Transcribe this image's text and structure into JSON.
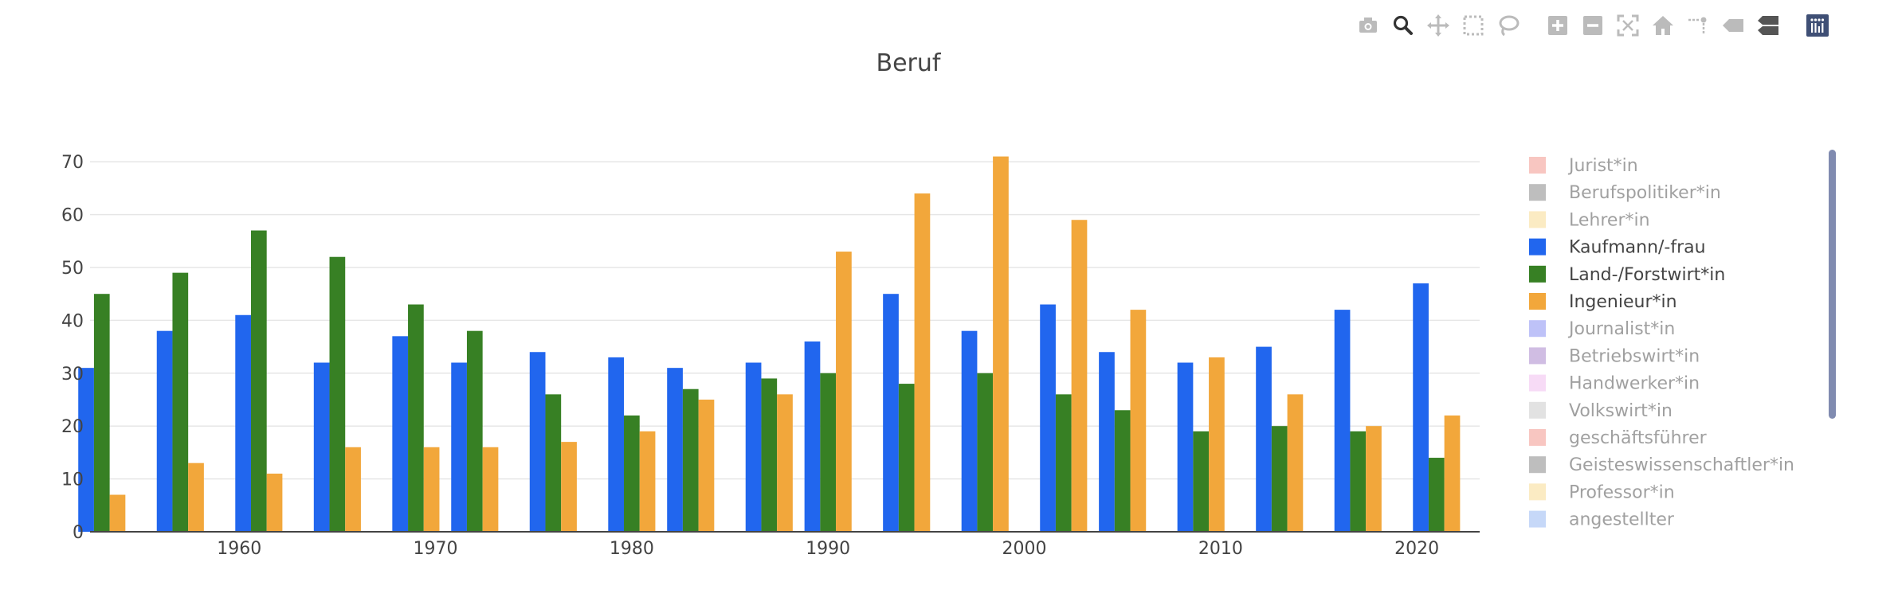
{
  "modebar": {
    "buttons": [
      {
        "icon": "camera-icon",
        "label": "Download plot as a png",
        "active": false
      },
      {
        "icon": "zoom-icon",
        "label": "Zoom",
        "active": true
      },
      {
        "icon": "pan-icon",
        "label": "Pan",
        "active": false
      },
      {
        "icon": "box-select-icon",
        "label": "Box Select",
        "active": false
      },
      {
        "icon": "lasso-select-icon",
        "label": "Lasso Select",
        "active": false
      },
      {
        "icon": "zoom-in-icon",
        "label": "Zoom in",
        "active": false
      },
      {
        "icon": "zoom-out-icon",
        "label": "Zoom out",
        "active": false
      },
      {
        "icon": "autoscale-icon",
        "label": "Autoscale",
        "active": false
      },
      {
        "icon": "home-icon",
        "label": "Reset axes",
        "active": false
      },
      {
        "icon": "spike-lines-icon",
        "label": "Toggle Spike Lines",
        "active": false
      },
      {
        "icon": "hover-closest-icon",
        "label": "Show closest data on hover",
        "active": false
      },
      {
        "icon": "hover-compare-icon",
        "label": "Compare data on hover",
        "active": false
      },
      {
        "icon": "plotly-logo-icon",
        "label": "Produced with Plotly",
        "active": false
      }
    ]
  },
  "chart_data": {
    "type": "bar",
    "title": "Beruf",
    "x": [
      1953,
      1957,
      1961,
      1965,
      1969,
      1972,
      1976,
      1980,
      1983,
      1987,
      1990,
      1994,
      1998,
      2002,
      2005,
      2009,
      2013,
      2017,
      2021
    ],
    "xticks": [
      1960,
      1970,
      1980,
      1990,
      2000,
      2010,
      2020
    ],
    "ylim": [
      0,
      75
    ],
    "yticks": [
      0,
      10,
      20,
      30,
      40,
      50,
      60,
      70
    ],
    "grid": true,
    "legend_position": "right",
    "series": [
      {
        "name": "Kaufmann/-frau",
        "color": "#2166ee",
        "values": [
          31,
          38,
          41,
          32,
          37,
          32,
          34,
          33,
          31,
          32,
          36,
          45,
          38,
          43,
          34,
          32,
          35,
          42,
          47
        ]
      },
      {
        "name": "Land-/Forstwirt*in",
        "color": "#378024",
        "values": [
          45,
          49,
          57,
          52,
          43,
          38,
          26,
          22,
          27,
          29,
          30,
          28,
          30,
          26,
          23,
          19,
          20,
          19,
          14
        ]
      },
      {
        "name": "Ingenieur*in",
        "color": "#f2a73b",
        "values": [
          7,
          13,
          11,
          16,
          16,
          16,
          17,
          19,
          25,
          26,
          53,
          64,
          71,
          59,
          42,
          33,
          26,
          20,
          22
        ]
      }
    ],
    "legend": [
      {
        "name": "Jurist*in",
        "color": "#f28e85",
        "visible": false
      },
      {
        "name": "Berufspolitiker*in",
        "color": "#7f7f7f",
        "visible": false
      },
      {
        "name": "Lehrer*in",
        "color": "#f9d888",
        "visible": false
      },
      {
        "name": "Kaufmann/-frau",
        "color": "#2166ee",
        "visible": true
      },
      {
        "name": "Land-/Forstwirt*in",
        "color": "#378024",
        "visible": true
      },
      {
        "name": "Ingenieur*in",
        "color": "#f2a73b",
        "visible": true
      },
      {
        "name": "Journalist*in",
        "color": "#7f86f3",
        "visible": false
      },
      {
        "name": "Betriebswirt*in",
        "color": "#a27dc8",
        "visible": false
      },
      {
        "name": "Handwerker*in",
        "color": "#f0b8ee",
        "visible": false
      },
      {
        "name": "Volkswirt*in",
        "color": "#c7c7c7",
        "visible": false
      },
      {
        "name": "geschäftsführer",
        "color": "#f28e85",
        "visible": false
      },
      {
        "name": "Geisteswissenschaftler*in",
        "color": "#7f7f7f",
        "visible": false
      },
      {
        "name": "Professor*in",
        "color": "#f9d888",
        "visible": false
      },
      {
        "name": "angestellter",
        "color": "#8fb2f3",
        "visible": false
      }
    ]
  }
}
